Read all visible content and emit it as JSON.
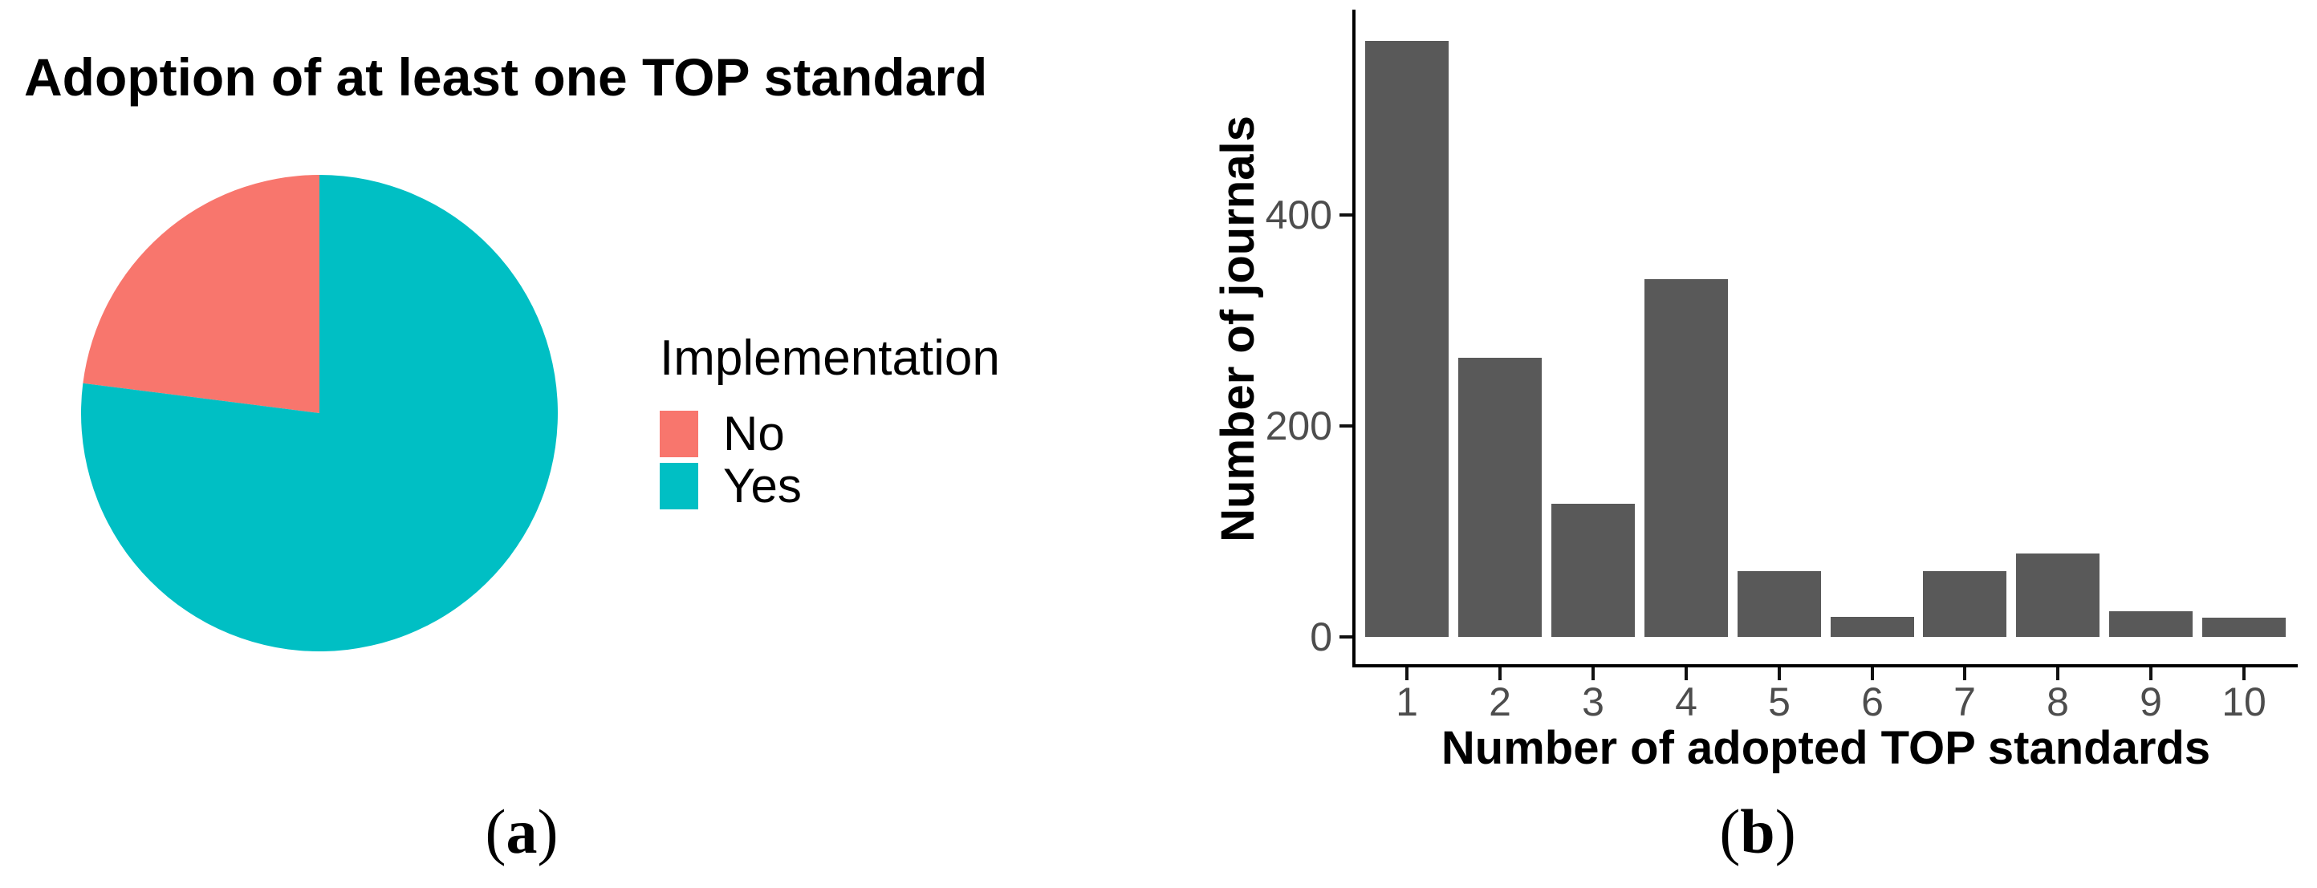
{
  "figure": {
    "panel_a": {
      "caption": "(a)",
      "title": "Adoption of at least one TOP standard",
      "legend": {
        "title": "Implementation",
        "items": [
          {
            "label": "No",
            "color": "#F8766D"
          },
          {
            "label": "Yes",
            "color": "#00BFC4"
          }
        ]
      }
    },
    "panel_b": {
      "caption": "(b)"
    }
  },
  "chart_data": [
    {
      "type": "pie",
      "title": "Adoption of at least one TOP standard",
      "legend_title": "Implementation",
      "legend_position": "right",
      "slices": [
        {
          "label": "No",
          "percent": 23,
          "color": "#F8766D"
        },
        {
          "label": "Yes",
          "percent": 77,
          "color": "#00BFC4"
        }
      ],
      "start_angle": "12 o'clock, No wedge fills counterclockwise (upper-left), Yes fills the rest"
    },
    {
      "type": "bar",
      "title": "",
      "categories": [
        "1",
        "2",
        "3",
        "4",
        "5",
        "6",
        "7",
        "8",
        "9",
        "10"
      ],
      "values": [
        565,
        265,
        126,
        339,
        62,
        19,
        62,
        79,
        24,
        18
      ],
      "xlabel": "Number of adopted TOP standards",
      "ylabel": "Number of journals",
      "y_ticks": [
        0,
        200,
        400
      ],
      "ylim": [
        0,
        595
      ],
      "bar_color": "#595959",
      "tick_label_color": "#4D4D4D",
      "grid": false,
      "legend_position": "none"
    }
  ]
}
